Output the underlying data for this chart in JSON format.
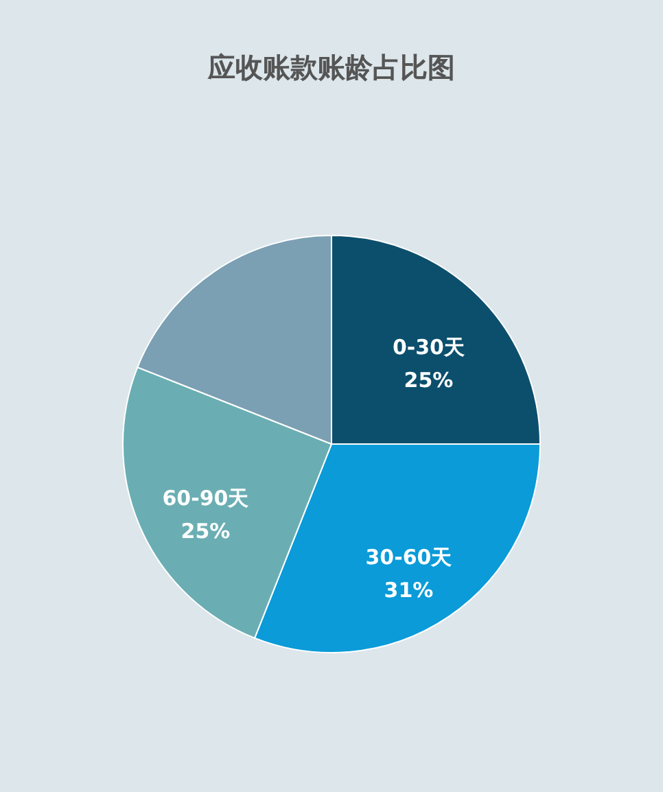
{
  "chart_data": {
    "type": "pie",
    "title": "应收账款账龄占比图",
    "categories": [
      "0-30天",
      "30-60天",
      "60-90天",
      null
    ],
    "values": [
      25,
      31,
      25,
      19
    ],
    "value_labels": [
      "25%",
      "31%",
      "25%",
      null
    ],
    "colors": [
      "#0c4f6d",
      "#0a9bd8",
      "#6aaeb3",
      "#7b9fb3"
    ],
    "legend": false
  }
}
